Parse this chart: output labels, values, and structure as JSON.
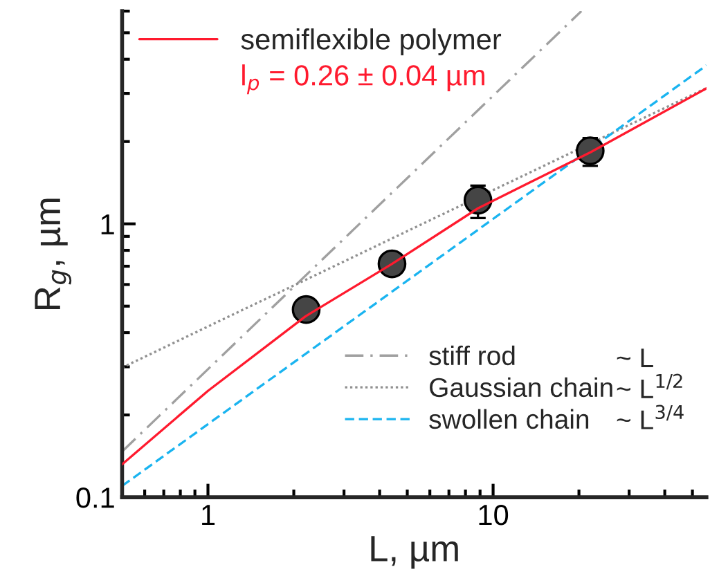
{
  "chart_data": {
    "type": "scatter",
    "xlabel": "L, µm",
    "ylabel": "R$_{g}$, µm",
    "log": "xy",
    "xlim": [
      0.5,
      56
    ],
    "ylim": [
      0.1,
      6
    ],
    "xticks": [
      1,
      10
    ],
    "yticks": [
      0.1,
      1
    ],
    "grid": false,
    "legend": "top left",
    "series": [
      {
        "type": "line",
        "name": "semiflexible polymer",
        "color": "#ff1a2e",
        "line_style": "solid",
        "x": [
          0.5,
          1,
          2.2,
          4.42,
          8.85,
          22,
          56
        ],
        "values": [
          0.132,
          0.245,
          0.459,
          0.714,
          1.14,
          1.83,
          3.13
        ]
      },
      {
        "type": "line",
        "name": "stiff rod",
        "color": "#a0a0a0",
        "line_style": "dashdot",
        "x": [
          0.5,
          20.4
        ],
        "values": [
          0.147,
          6
        ]
      },
      {
        "type": "line",
        "name": "Gaussian chain",
        "color": "#909090",
        "line_style": "dotted",
        "x": [
          0.5,
          56
        ],
        "values": [
          0.298,
          3.14
        ]
      },
      {
        "type": "line",
        "name": "swollen chain",
        "color": "#1ab4f0",
        "line_style": "dashed",
        "x": [
          0.5,
          56
        ],
        "values": [
          0.11,
          3.8
        ]
      },
      {
        "color": "#454545",
        "marker": "circle",
        "x": [
          2.21,
          4.42,
          8.85,
          21.9
        ],
        "values": [
          0.486,
          0.714,
          1.22,
          1.85
        ],
        "errors": [
          null,
          null,
          [
            1.05,
            1.38
          ],
          [
            1.63,
            2.06
          ]
        ]
      }
    ],
    "annotations": [
      "l$_{p}$ = 0.26 ± 0.04 µm",
      "~ L",
      "~ L$^{1/2}$",
      "~ L$^{3/4}$"
    ]
  }
}
